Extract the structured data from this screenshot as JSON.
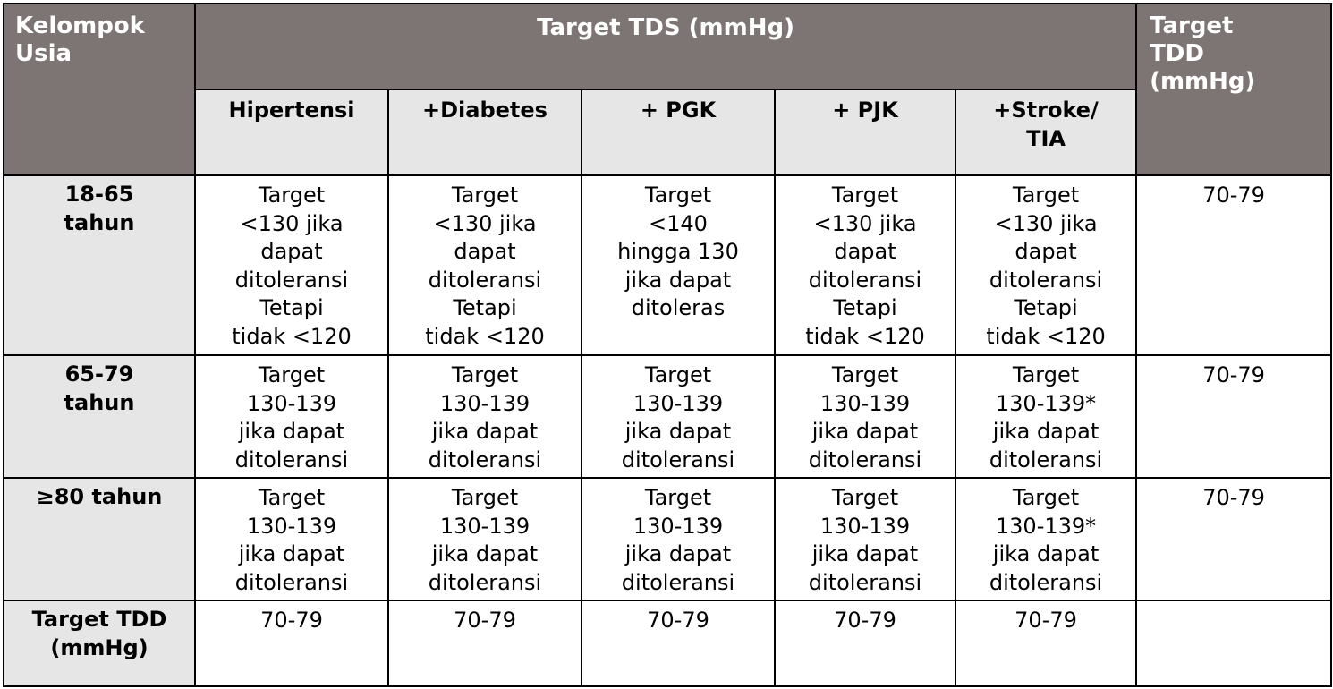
{
  "header": {
    "age_group": "Kelompok\nUsia",
    "target_tds": "Target TDS (mmHg)",
    "target_tdd": "Target\nTDD\n(mmHg)",
    "columns": [
      "Hipertensi",
      "+Diabetes",
      "+ PGK",
      "+ PJK",
      "+Stroke/\nTIA"
    ]
  },
  "rows": [
    {
      "age": "18-65\ntahun",
      "cells": [
        "Target\n<130 jika\ndapat\nditoleransi\nTetapi\ntidak <120",
        "Target\n<130 jika\ndapat\nditoleransi\nTetapi\ntidak <120",
        "Target\n<140\nhingga 130\njika dapat\nditoleras",
        "Target\n<130 jika\ndapat\nditoleransi\nTetapi\ntidak <120",
        "Target\n<130 jika\ndapat\nditoleransi\nTetapi\ntidak <120"
      ],
      "tdd": "70-79"
    },
    {
      "age": "65-79\ntahun",
      "cells": [
        "Target\n130-139\njika dapat\nditoleransi",
        "Target\n130-139\njika dapat\nditoleransi",
        "Target\n130-139\njika dapat\nditoleransi",
        "Target\n130-139\njika dapat\nditoleransi",
        "Target\n130-139*\njika dapat\nditoleransi"
      ],
      "tdd": "70-79"
    },
    {
      "age": "≥80  tahun",
      "cells": [
        "Target\n130-139\njika dapat\nditoleransi",
        "Target\n130-139\njika dapat\nditoleransi",
        "Target\n130-139\njika dapat\nditoleransi",
        "Target\n130-139\njika dapat\nditoleransi",
        "Target\n130-139*\njika dapat\nditoleransi"
      ],
      "tdd": "70-79"
    },
    {
      "age": "Target TDD\n(mmHg)",
      "cells": [
        "70-79",
        "70-79",
        "70-79",
        "70-79",
        "70-79"
      ],
      "tdd": ""
    }
  ],
  "colors": {
    "header_bg": "#7d7573",
    "subheader_bg": "#e6e6e6",
    "row_header_bg": "#e6e6e6",
    "border": "#000000"
  }
}
